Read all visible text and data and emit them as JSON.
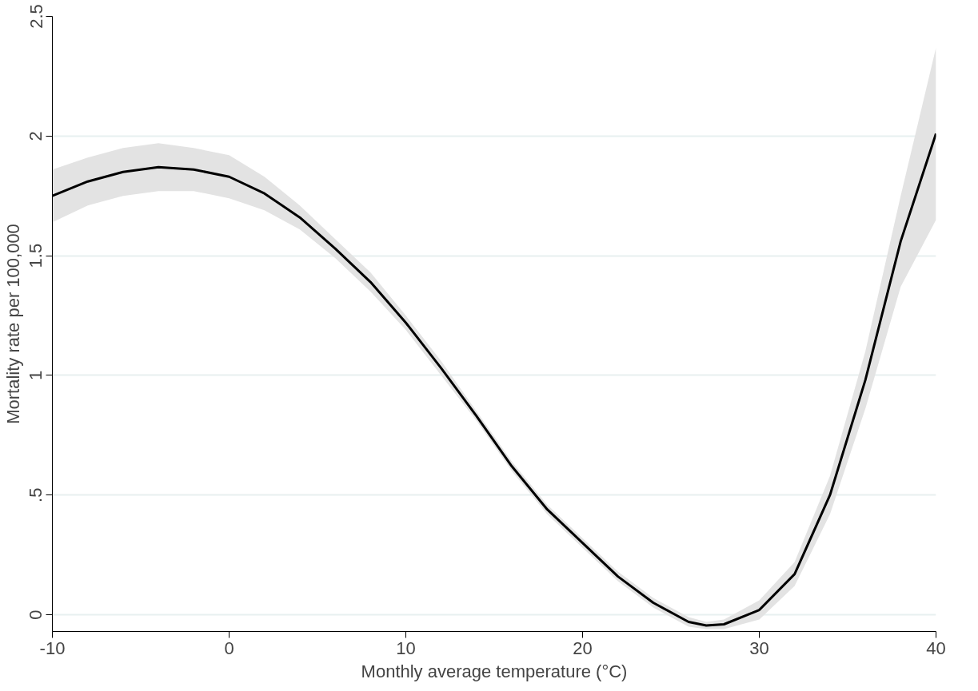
{
  "chart_data": {
    "type": "line",
    "xlabel": "Monthly average temperature (°C)",
    "ylabel": "Mortality rate per 100,000",
    "xlim": [
      -10,
      40
    ],
    "ylim": [
      -0.07,
      2.5
    ],
    "xticks": [
      -10,
      0,
      10,
      20,
      30,
      40
    ],
    "yticks": [
      0,
      {
        "value": 0.5,
        "label": ".5"
      },
      1,
      1.5,
      2,
      2.5
    ],
    "grid": "y",
    "series": [
      {
        "color": "#000000",
        "x": [
          -10,
          -8,
          -6,
          -4,
          -2,
          0,
          2,
          4,
          6,
          8,
          10,
          12,
          14,
          16,
          18,
          20,
          22,
          24,
          26,
          27,
          28,
          30,
          32,
          34,
          36,
          38,
          40
        ],
        "values": [
          1.75,
          1.81,
          1.85,
          1.87,
          1.86,
          1.83,
          1.76,
          1.66,
          1.53,
          1.39,
          1.22,
          1.03,
          0.83,
          0.62,
          0.44,
          0.3,
          0.16,
          0.05,
          -0.03,
          -0.045,
          -0.04,
          0.02,
          0.17,
          0.5,
          0.98,
          1.56,
          2.01
        ],
        "lower": [
          1.64,
          1.71,
          1.75,
          1.77,
          1.77,
          1.74,
          1.69,
          1.61,
          1.49,
          1.35,
          1.19,
          1.0,
          0.81,
          0.6,
          0.42,
          0.28,
          0.14,
          0.03,
          -0.05,
          -0.06,
          -0.06,
          -0.02,
          0.12,
          0.42,
          0.86,
          1.37,
          1.65
        ],
        "upper": [
          1.86,
          1.91,
          1.95,
          1.97,
          1.95,
          1.92,
          1.83,
          1.71,
          1.57,
          1.43,
          1.25,
          1.06,
          0.85,
          0.64,
          0.46,
          0.32,
          0.18,
          0.07,
          -0.01,
          -0.03,
          -0.02,
          0.06,
          0.22,
          0.58,
          1.1,
          1.75,
          2.37
        ]
      }
    ]
  }
}
